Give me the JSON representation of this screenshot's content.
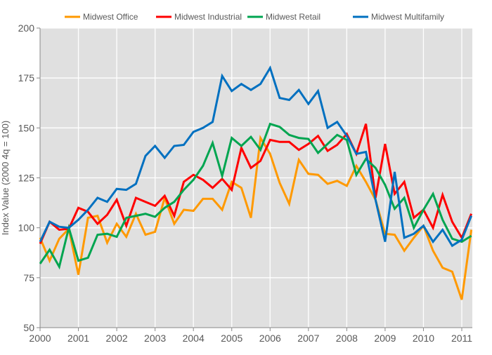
{
  "chart_data": {
    "type": "line",
    "title": "",
    "xlabel": "",
    "ylabel": "Index Value (2000 4q = 100)",
    "xlim": [
      2000,
      2011.25
    ],
    "ylim": [
      50,
      200
    ],
    "yticks": [
      50,
      75,
      100,
      125,
      150,
      175,
      200
    ],
    "xticks": [
      2000,
      2001,
      2002,
      2003,
      2004,
      2005,
      2006,
      2007,
      2008,
      2009,
      2010,
      2011
    ],
    "grid": true,
    "legend_position": "top",
    "x_note": "quarterly, 2000 q1 through 2011 q2",
    "series": [
      {
        "name": "Midwest Office",
        "color": "#ff9900",
        "values": [
          95,
          83.5,
          94.5,
          99.5,
          76.5,
          105,
          106,
          92.5,
          102,
          95.5,
          107,
          96.5,
          98,
          115,
          102,
          109,
          108.5,
          114.5,
          114.5,
          109,
          123,
          120,
          105,
          145,
          137,
          122.5,
          112,
          134,
          127,
          126.5,
          122,
          123.5,
          121,
          131,
          123,
          114,
          97,
          96.5,
          88.5,
          95,
          101,
          88.5,
          80,
          78,
          64,
          99
        ]
      },
      {
        "name": "Midwest Industrial",
        "color": "#ff0000",
        "values": [
          92,
          103,
          99,
          99.5,
          110,
          108,
          102,
          106.5,
          114,
          101,
          115,
          113,
          111,
          116,
          106,
          123,
          126.5,
          124,
          120,
          124.5,
          119,
          140,
          130,
          133.5,
          144,
          143,
          143,
          139,
          142,
          146,
          138.5,
          141.5,
          147,
          137,
          152,
          115,
          142,
          117,
          123,
          105,
          109,
          100,
          116.5,
          103,
          95,
          107
        ]
      },
      {
        "name": "Midwest Retail",
        "color": "#00a550",
        "values": [
          82,
          89,
          80.5,
          100,
          83.5,
          85,
          96.5,
          97,
          95.5,
          105,
          106,
          107,
          105.5,
          110,
          113,
          119,
          124,
          131,
          142.5,
          126,
          145,
          141,
          145.5,
          139,
          152,
          150.5,
          146.5,
          145,
          144.5,
          137.5,
          142,
          146.5,
          144,
          126.5,
          134.5,
          130,
          121.5,
          109.5,
          115,
          100,
          109,
          117,
          104,
          94.5,
          93,
          96
        ]
      },
      {
        "name": "Midwest Multifamily",
        "color": "#0070c0",
        "values": [
          93,
          103,
          100.5,
          100,
          104,
          109,
          115,
          113,
          119.5,
          119,
          122,
          136,
          141,
          135,
          141,
          141.5,
          148,
          150,
          153,
          176,
          168.5,
          172,
          169,
          172,
          180,
          165,
          164,
          169,
          162,
          168.5,
          150,
          153,
          146,
          137,
          138,
          114,
          93,
          128,
          95,
          97,
          101,
          93,
          99,
          91,
          94,
          106
        ]
      }
    ]
  }
}
